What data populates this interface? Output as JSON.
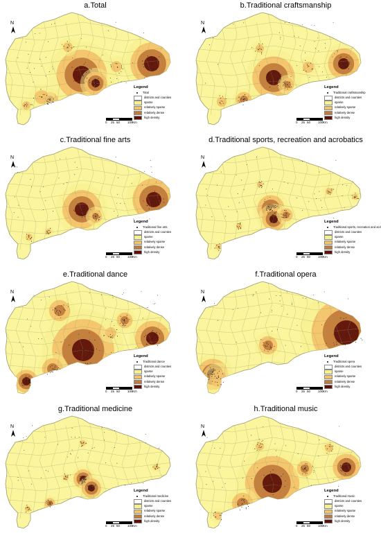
{
  "legend": {
    "title": "Legend",
    "districts_label": "districts and counties",
    "classes": [
      {
        "label": "sparse",
        "color": "#f7f08e"
      },
      {
        "label": "relatively sparse",
        "color": "#f3c36a"
      },
      {
        "label": "relatively dense",
        "color": "#c07a3a"
      },
      {
        "label": "high density",
        "color": "#5c1008"
      }
    ]
  },
  "north_label": "N",
  "scale": {
    "ticks": [
      "0",
      "25",
      "50",
      "100"
    ],
    "unit": "Km"
  },
  "colors": {
    "base_map": "#fbf59d",
    "boundary": "#9a9a6c",
    "sea": "#ffffff"
  },
  "panels": [
    {
      "title": "a.Total",
      "point_label": "Total",
      "hotspots": [
        {
          "level": 3,
          "cx": 118,
          "cy": 96,
          "r": 13
        },
        {
          "level": 3,
          "cx": 219,
          "cy": 80,
          "r": 11
        },
        {
          "level": 3,
          "cx": 138,
          "cy": 108,
          "r": 6
        },
        {
          "level": 2,
          "cx": 72,
          "cy": 132,
          "r": 6
        },
        {
          "level": 1,
          "cx": 60,
          "cy": 128,
          "r": 10
        },
        {
          "level": 1,
          "cx": 168,
          "cy": 84,
          "r": 8
        },
        {
          "level": 1,
          "cx": 98,
          "cy": 56,
          "r": 7
        },
        {
          "level": 1,
          "cx": 38,
          "cy": 140,
          "r": 6
        }
      ]
    },
    {
      "title": "b.Traditional craftsmanship",
      "point_label": "Traditional craftsmanship",
      "hotspots": [
        {
          "level": 3,
          "cx": 120,
          "cy": 100,
          "r": 11
        },
        {
          "level": 3,
          "cx": 221,
          "cy": 80,
          "r": 8
        },
        {
          "level": 2,
          "cx": 77,
          "cy": 132,
          "r": 6
        },
        {
          "level": 2,
          "cx": 140,
          "cy": 110,
          "r": 5
        },
        {
          "level": 1,
          "cx": 170,
          "cy": 85,
          "r": 8
        },
        {
          "level": 1,
          "cx": 100,
          "cy": 58,
          "r": 6
        },
        {
          "level": 1,
          "cx": 45,
          "cy": 135,
          "r": 7
        }
      ]
    },
    {
      "title": "c.Traditional fine arts",
      "point_label": "Traditional fine arts",
      "hotspots": [
        {
          "level": 3,
          "cx": 118,
          "cy": 96,
          "r": 10
        },
        {
          "level": 3,
          "cx": 222,
          "cy": 82,
          "r": 11
        },
        {
          "level": 2,
          "cx": 138,
          "cy": 106,
          "r": 5
        },
        {
          "level": 1,
          "cx": 42,
          "cy": 136,
          "r": 5
        },
        {
          "level": 1,
          "cx": 70,
          "cy": 128,
          "r": 4
        }
      ]
    },
    {
      "title": "d.Traditional sports, recreation and acrobatics",
      "point_label": "Traditional sports, recreation and acrobatics",
      "hotspots": [
        {
          "level": 3,
          "cx": 116,
          "cy": 95,
          "r": 7
        },
        {
          "level": 3,
          "cx": 120,
          "cy": 110,
          "r": 6
        },
        {
          "level": 2,
          "cx": 138,
          "cy": 104,
          "r": 5
        },
        {
          "level": 1,
          "cx": 200,
          "cy": 70,
          "r": 5
        },
        {
          "level": 1,
          "cx": 238,
          "cy": 78,
          "r": 4
        },
        {
          "level": 1,
          "cx": 70,
          "cy": 120,
          "r": 4
        },
        {
          "level": 1,
          "cx": 40,
          "cy": 150,
          "r": 4
        },
        {
          "level": 1,
          "cx": 100,
          "cy": 60,
          "r": 4
        }
      ]
    },
    {
      "title": "e.Traditional dance",
      "point_label": "Traditional dance",
      "hotspots": [
        {
          "level": 3,
          "cx": 120,
          "cy": 105,
          "r": 16
        },
        {
          "level": 3,
          "cx": 220,
          "cy": 88,
          "r": 9
        },
        {
          "level": 3,
          "cx": 38,
          "cy": 150,
          "r": 6
        },
        {
          "level": 2,
          "cx": 76,
          "cy": 132,
          "r": 8
        },
        {
          "level": 2,
          "cx": 86,
          "cy": 48,
          "r": 8
        },
        {
          "level": 2,
          "cx": 180,
          "cy": 62,
          "r": 6
        },
        {
          "level": 1,
          "cx": 160,
          "cy": 80,
          "r": 8
        }
      ]
    },
    {
      "title": "f.Traditional opera",
      "point_label": "Traditional opera",
      "hotspots": [
        {
          "level": 3,
          "cx": 225,
          "cy": 80,
          "r": 18
        },
        {
          "level": 3,
          "cx": 32,
          "cy": 140,
          "r": 8
        },
        {
          "level": 2,
          "cx": 112,
          "cy": 98,
          "r": 7
        },
        {
          "level": 1,
          "cx": 40,
          "cy": 146,
          "r": 12
        }
      ]
    },
    {
      "title": "g.Traditional medicine",
      "point_label": "Traditional medicine",
      "hotspots": [
        {
          "level": 3,
          "cx": 120,
          "cy": 97,
          "r": 5
        },
        {
          "level": 3,
          "cx": 132,
          "cy": 110,
          "r": 5
        },
        {
          "level": 2,
          "cx": 72,
          "cy": 132,
          "r": 4
        },
        {
          "level": 1,
          "cx": 120,
          "cy": 45,
          "r": 4
        },
        {
          "level": 1,
          "cx": 95,
          "cy": 95,
          "r": 4
        },
        {
          "level": 1,
          "cx": 40,
          "cy": 140,
          "r": 4
        },
        {
          "level": 1,
          "cx": 225,
          "cy": 80,
          "r": 4
        }
      ]
    },
    {
      "title": "h.Traditional music",
      "point_label": "Traditional music",
      "hotspots": [
        {
          "level": 3,
          "cx": 118,
          "cy": 103,
          "r": 14
        },
        {
          "level": 3,
          "cx": 225,
          "cy": 80,
          "r": 7
        },
        {
          "level": 2,
          "cx": 75,
          "cy": 132,
          "r": 8
        },
        {
          "level": 2,
          "cx": 165,
          "cy": 82,
          "r": 6
        },
        {
          "level": 1,
          "cx": 200,
          "cy": 52,
          "r": 6
        },
        {
          "level": 1,
          "cx": 40,
          "cy": 150,
          "r": 6
        },
        {
          "level": 1,
          "cx": 100,
          "cy": 50,
          "r": 6
        }
      ]
    }
  ]
}
